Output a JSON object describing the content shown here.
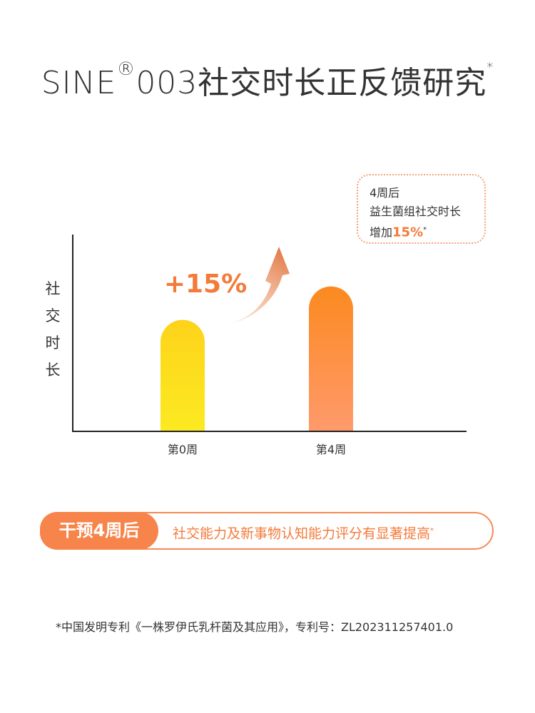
{
  "title": {
    "prefix": "SINE",
    "registered": "®",
    "main": "003社交时长正反馈研究",
    "asterisk": "*"
  },
  "callout": {
    "line1": "4周后",
    "line2": "益生菌组社交时长",
    "line3_prefix": "增加",
    "line3_highlight": "15%",
    "line3_asterisk": "*"
  },
  "growth_label": "+15%",
  "chart_data": {
    "type": "bar",
    "categories": [
      "第0周",
      "第4周"
    ],
    "values": [
      100,
      115
    ],
    "ylabel": "社交时长",
    "ylabel_chars": [
      "社",
      "交",
      "时",
      "长"
    ],
    "annotation": "+15%",
    "grid": false,
    "colors": {
      "bar0_top": "#fdd31a",
      "bar0_bottom": "#fcea22",
      "bar1_top": "#fb8a1f",
      "bar1_bottom": "#ff9a6c",
      "axis": "#222222"
    }
  },
  "bottom": {
    "tag": "干预4周后",
    "description": "社交能力及新事物认知能力评分有显著提高",
    "asterisk": "*"
  },
  "footnote": "*中国发明专利《一株罗伊氏乳杆菌及其应用》，专利号：ZL202311257401.0"
}
